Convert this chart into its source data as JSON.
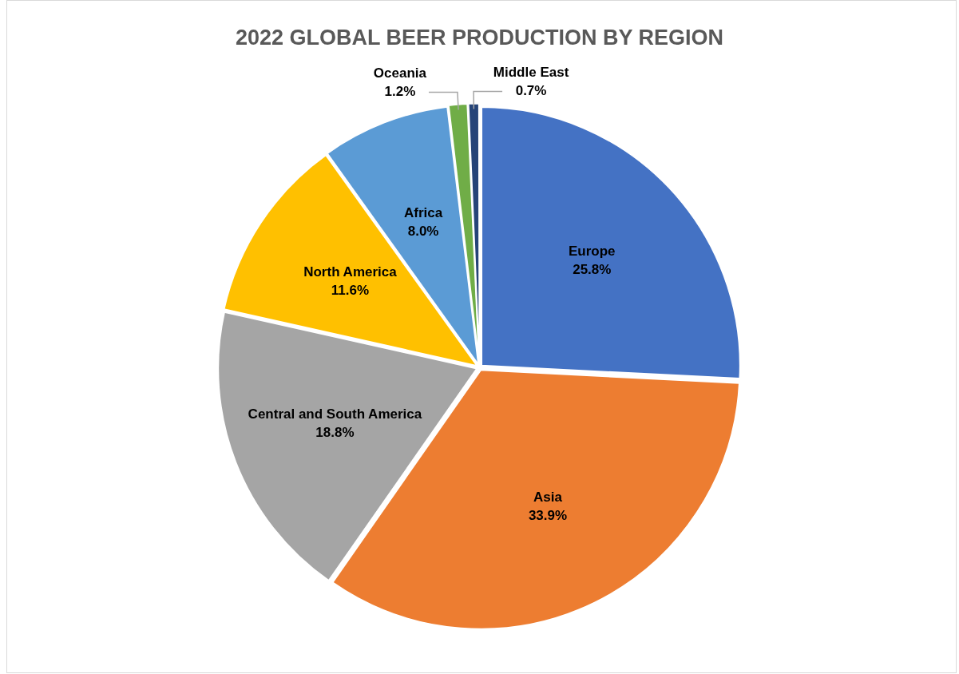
{
  "chart_data": {
    "type": "pie",
    "title": "2022 GLOBAL BEER PRODUCTION BY REGION",
    "categories": [
      "Europe",
      "Asia",
      "Central and South America",
      "North America",
      "Africa",
      "Oceania",
      "Middle East"
    ],
    "values": [
      25.8,
      33.9,
      18.8,
      11.6,
      8.0,
      1.2,
      0.7
    ],
    "colors": [
      "#4472c4",
      "#ed7d31",
      "#a5a5a5",
      "#ffc000",
      "#5b9bd5",
      "#70ad47",
      "#264478"
    ],
    "value_labels": [
      "25.8%",
      "33.9%",
      "18.8%",
      "11.6%",
      "8.0%",
      "1.2%",
      "0.7%"
    ],
    "legend": false
  }
}
